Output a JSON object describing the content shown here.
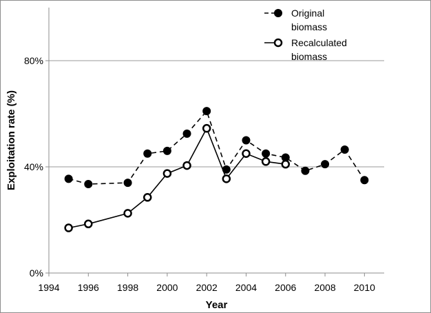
{
  "chart_data": {
    "type": "line",
    "title": "",
    "xlabel": "Year",
    "ylabel": "Exploitation rate  (%)",
    "xlim": [
      1994,
      2011
    ],
    "ylim": [
      0,
      100
    ],
    "x_ticks": [
      1994,
      1996,
      1998,
      2000,
      2002,
      2004,
      2006,
      2008,
      2010
    ],
    "x_tick_labels": [
      "1994",
      "1996",
      "1998",
      "2000",
      "2002",
      "2004",
      "2006",
      "2008",
      "2010"
    ],
    "y_ticks": [
      0,
      40,
      80
    ],
    "y_tick_labels": [
      "0%",
      "40%",
      "80%"
    ],
    "grid": "horizontal",
    "legend_position": "top-right",
    "series": [
      {
        "name": "Original biomass",
        "legend_lines": [
          "Original",
          "biomass"
        ],
        "line_style": "dashed",
        "marker": "filled-circle",
        "x": [
          1995,
          1996,
          1998,
          1999,
          2000,
          2001,
          2002,
          2003,
          2004,
          2005,
          2006,
          2007,
          2008,
          2009,
          2010
        ],
        "y": [
          35.5,
          33.5,
          34,
          45,
          46,
          52.5,
          61,
          39,
          50,
          45,
          43.5,
          38.5,
          41,
          46.5,
          35
        ]
      },
      {
        "name": "Recalculated biomass",
        "legend_lines": [
          "Recalculated",
          "biomass"
        ],
        "line_style": "solid",
        "marker": "open-circle",
        "x": [
          1995,
          1996,
          1998,
          1999,
          2000,
          2001,
          2002,
          2003,
          2004,
          2005,
          2006
        ],
        "y": [
          17,
          18.5,
          22.5,
          28.5,
          37.5,
          40.5,
          54.5,
          35.5,
          45,
          42,
          41
        ]
      }
    ],
    "colors": {
      "series": "#000000",
      "grid": "#9a9a9a",
      "axis": "#8c8c8c",
      "open_marker_fill": "#ffffff"
    }
  }
}
